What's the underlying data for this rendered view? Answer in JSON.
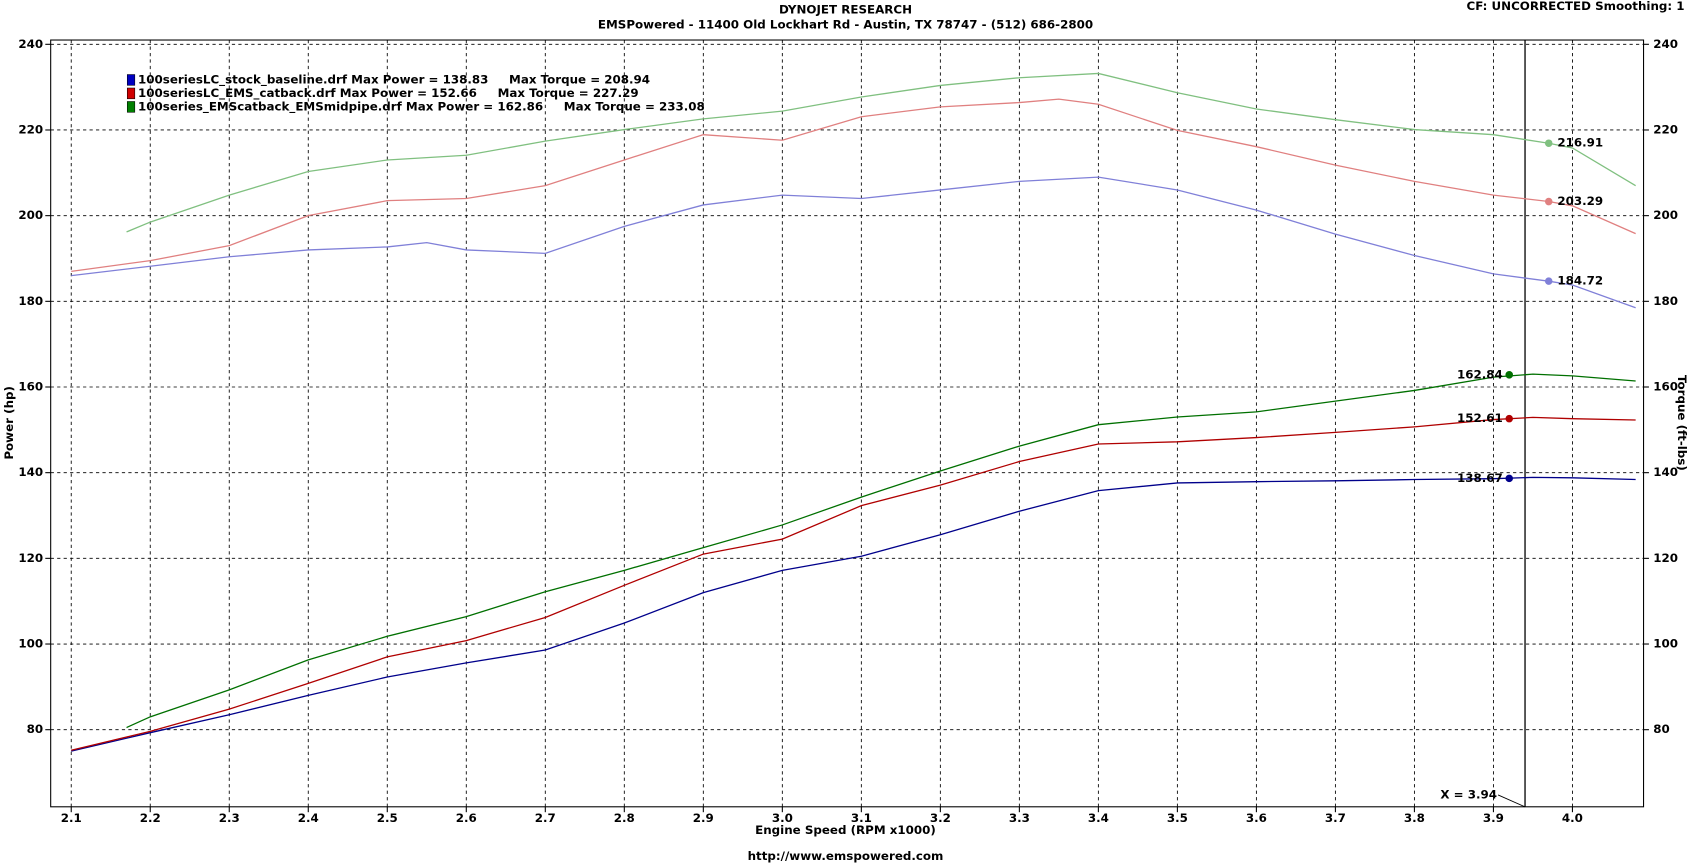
{
  "header": {
    "title": "DYNOJET RESEARCH",
    "subtitle": "EMSPowered - 11400 Old Lockhart Rd - Austin, TX 78747 - (512) 686-2800",
    "settings": "CF: UNCORRECTED  Smoothing: 1",
    "footer": "http://www.emspowered.com"
  },
  "chart_data": {
    "type": "line",
    "x_label": "Engine Speed (RPM x1000)",
    "y_label": "Power (hp)",
    "y2_label": "Torque (ft-lbs)",
    "xlim": [
      2.074,
      4.09
    ],
    "ylim": [
      62,
      241
    ],
    "y2lim": [
      62,
      241
    ],
    "xticks": [
      2.1,
      2.2,
      2.3,
      2.4,
      2.5,
      2.6,
      2.7,
      2.8,
      2.9,
      {
        "value": 3.0,
        "label": "3.0"
      },
      3.1,
      3.2,
      3.3,
      3.4,
      3.5,
      3.6,
      3.7,
      3.8,
      3.9,
      {
        "value": 4.0,
        "label": "4.0"
      }
    ],
    "yticks": [
      80,
      100,
      120,
      140,
      160,
      180,
      200,
      220,
      240
    ],
    "y2ticks": [
      80,
      100,
      120,
      140,
      160,
      180,
      200,
      220,
      240
    ],
    "grid": true,
    "cursor": {
      "x": 3.94,
      "label": "X = 3.94"
    },
    "legend": [
      {
        "label": "100seriesLC_stock_baseline.drf Max Power = 138.83     Max Torque = 208.94",
        "color": "#0000c0"
      },
      {
        "label": "100seriesLC_EMS_catback.drf Max Power = 152.66     Max Torque = 227.29",
        "color": "#d00000"
      },
      {
        "label": "100series_EMScatback_EMSmidpipe.drf Max Power = 162.86     Max Torque = 233.08",
        "color": "#008000"
      }
    ],
    "series": [
      {
        "color": "#00008b",
        "axis": "y",
        "x": [
          2.1,
          2.2,
          2.3,
          2.4,
          2.5,
          2.6,
          2.7,
          2.8,
          2.9,
          3.0,
          3.1,
          3.2,
          3.3,
          3.4,
          3.5,
          3.6,
          3.7,
          3.8,
          3.9,
          3.95,
          4.0,
          4.08
        ],
        "values": [
          75,
          79.3,
          83.5,
          88,
          92.3,
          95.6,
          98.6,
          104.9,
          112,
          117.2,
          120.5,
          125.5,
          131,
          135.8,
          137.6,
          137.9,
          138.1,
          138.4,
          138.6,
          138.9,
          138.8,
          138.4
        ],
        "cursor": {
          "x": 3.92,
          "value": 138.67
        }
      },
      {
        "color": "#b00000",
        "axis": "y",
        "x": [
          2.1,
          2.2,
          2.3,
          2.4,
          2.5,
          2.6,
          2.7,
          2.8,
          2.9,
          3.0,
          3.1,
          3.2,
          3.3,
          3.4,
          3.5,
          3.6,
          3.7,
          3.8,
          3.9,
          3.95,
          4.0,
          4.08
        ],
        "values": [
          75.2,
          79.6,
          84.8,
          90.8,
          97,
          100.8,
          106.2,
          113.7,
          121,
          124.5,
          132.3,
          137.1,
          142.6,
          146.7,
          147.2,
          148.2,
          149.4,
          150.7,
          152.4,
          152.9,
          152.6,
          152.3
        ],
        "cursor": {
          "x": 3.92,
          "value": 152.61
        }
      },
      {
        "color": "#007000",
        "axis": "y",
        "x": [
          2.17,
          2.2,
          2.3,
          2.4,
          2.5,
          2.6,
          2.7,
          2.8,
          2.9,
          3.0,
          3.1,
          3.2,
          3.3,
          3.4,
          3.5,
          3.6,
          3.7,
          3.8,
          3.9,
          3.95,
          4.0,
          4.08
        ],
        "values": [
          80.5,
          83,
          89.3,
          96.3,
          101.8,
          106.4,
          112.2,
          117.2,
          122.5,
          127.8,
          134.3,
          140.4,
          146.2,
          151.2,
          153,
          154.2,
          156.7,
          159.2,
          162.3,
          163,
          162.6,
          161.4
        ],
        "cursor": {
          "x": 3.92,
          "value": 162.84
        }
      },
      {
        "color": "#8080d8",
        "axis": "y2",
        "x": [
          2.1,
          2.2,
          2.3,
          2.4,
          2.5,
          2.55,
          2.6,
          2.7,
          2.8,
          2.9,
          3.0,
          3.1,
          3.2,
          3.3,
          3.4,
          3.5,
          3.6,
          3.7,
          3.8,
          3.9,
          3.97,
          4.0,
          4.08
        ],
        "values": [
          186,
          188.2,
          190.4,
          192,
          192.7,
          193.7,
          192,
          191.2,
          197.5,
          202.5,
          204.8,
          204,
          206,
          208,
          209,
          206,
          201.3,
          195.7,
          190.7,
          186.4,
          184.7,
          183.8,
          178.5
        ],
        "cursor": {
          "x": 3.97,
          "value": 184.72
        }
      },
      {
        "color": "#e08080",
        "axis": "y2",
        "x": [
          2.1,
          2.2,
          2.3,
          2.4,
          2.5,
          2.6,
          2.7,
          2.8,
          2.9,
          3.0,
          3.1,
          3.2,
          3.3,
          3.35,
          3.4,
          3.5,
          3.6,
          3.7,
          3.8,
          3.9,
          3.97,
          4.0,
          4.08
        ],
        "values": [
          187,
          189.5,
          193,
          200,
          203.5,
          204,
          207,
          213,
          218.9,
          217.6,
          223.1,
          225.4,
          226.4,
          227.2,
          226,
          219.9,
          216.1,
          211.8,
          208,
          204.8,
          203.3,
          202.3,
          195.8
        ],
        "cursor": {
          "x": 3.97,
          "value": 203.29
        }
      },
      {
        "color": "#80c080",
        "axis": "y2",
        "x": [
          2.17,
          2.2,
          2.3,
          2.4,
          2.5,
          2.6,
          2.7,
          2.8,
          2.9,
          3.0,
          3.1,
          3.2,
          3.3,
          3.4,
          3.5,
          3.6,
          3.7,
          3.8,
          3.9,
          3.97,
          4.0,
          4.08
        ],
        "values": [
          196.2,
          198.5,
          204.8,
          210.3,
          213,
          214.1,
          217.4,
          220.1,
          222.6,
          224.4,
          227.7,
          230.4,
          232.2,
          233.2,
          228.7,
          224.9,
          222.4,
          220.1,
          218.9,
          216.9,
          215.8,
          207
        ],
        "cursor": {
          "x": 3.97,
          "value": 216.91
        }
      }
    ]
  }
}
